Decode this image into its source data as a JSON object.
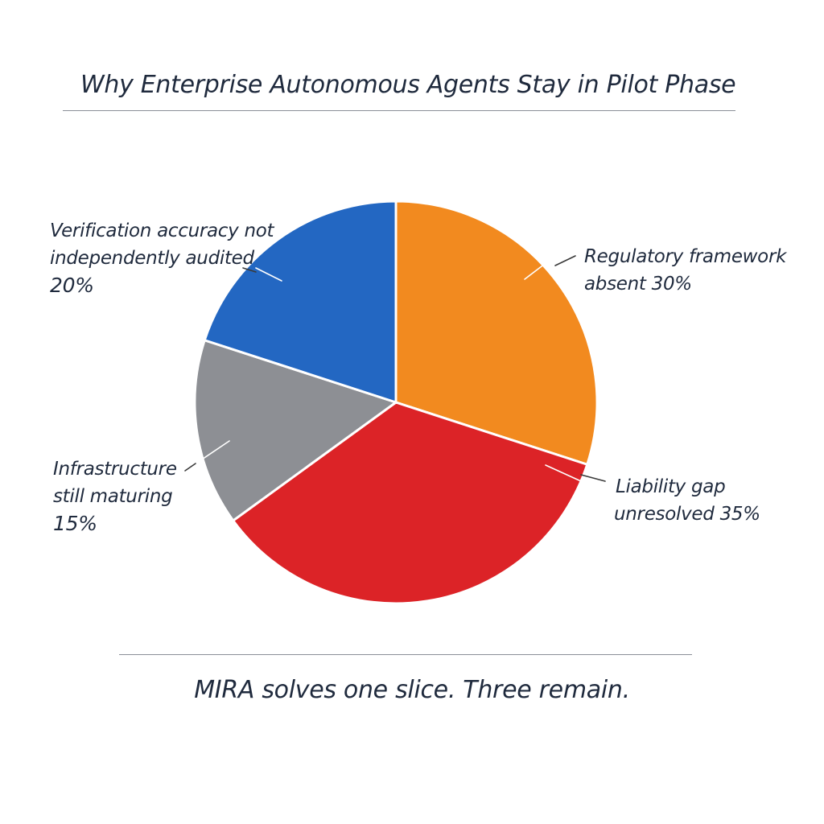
{
  "chart_data": {
    "type": "pie",
    "title": "Why Enterprise Autonomous Agents Stay in Pilot Phase",
    "caption": "MIRA solves one slice. Three remain.",
    "slices": [
      {
        "label_line1": "Regulatory framework",
        "label_line2": "absent 30%",
        "value": 30,
        "color": "#f28a1f"
      },
      {
        "label_line1": "Liability gap",
        "label_line2": "unresolved 35%",
        "value": 35,
        "color": "#dc2327"
      },
      {
        "label_line1": "Infrastructure",
        "label_line2": "still maturing",
        "label_line3": "15%",
        "value": 15,
        "color": "#8d8f94"
      },
      {
        "label_line1": "Verification accuracy not",
        "label_line2": "independently audited",
        "label_line3": "20%",
        "value": 20,
        "color": "#2367c2"
      }
    ]
  }
}
